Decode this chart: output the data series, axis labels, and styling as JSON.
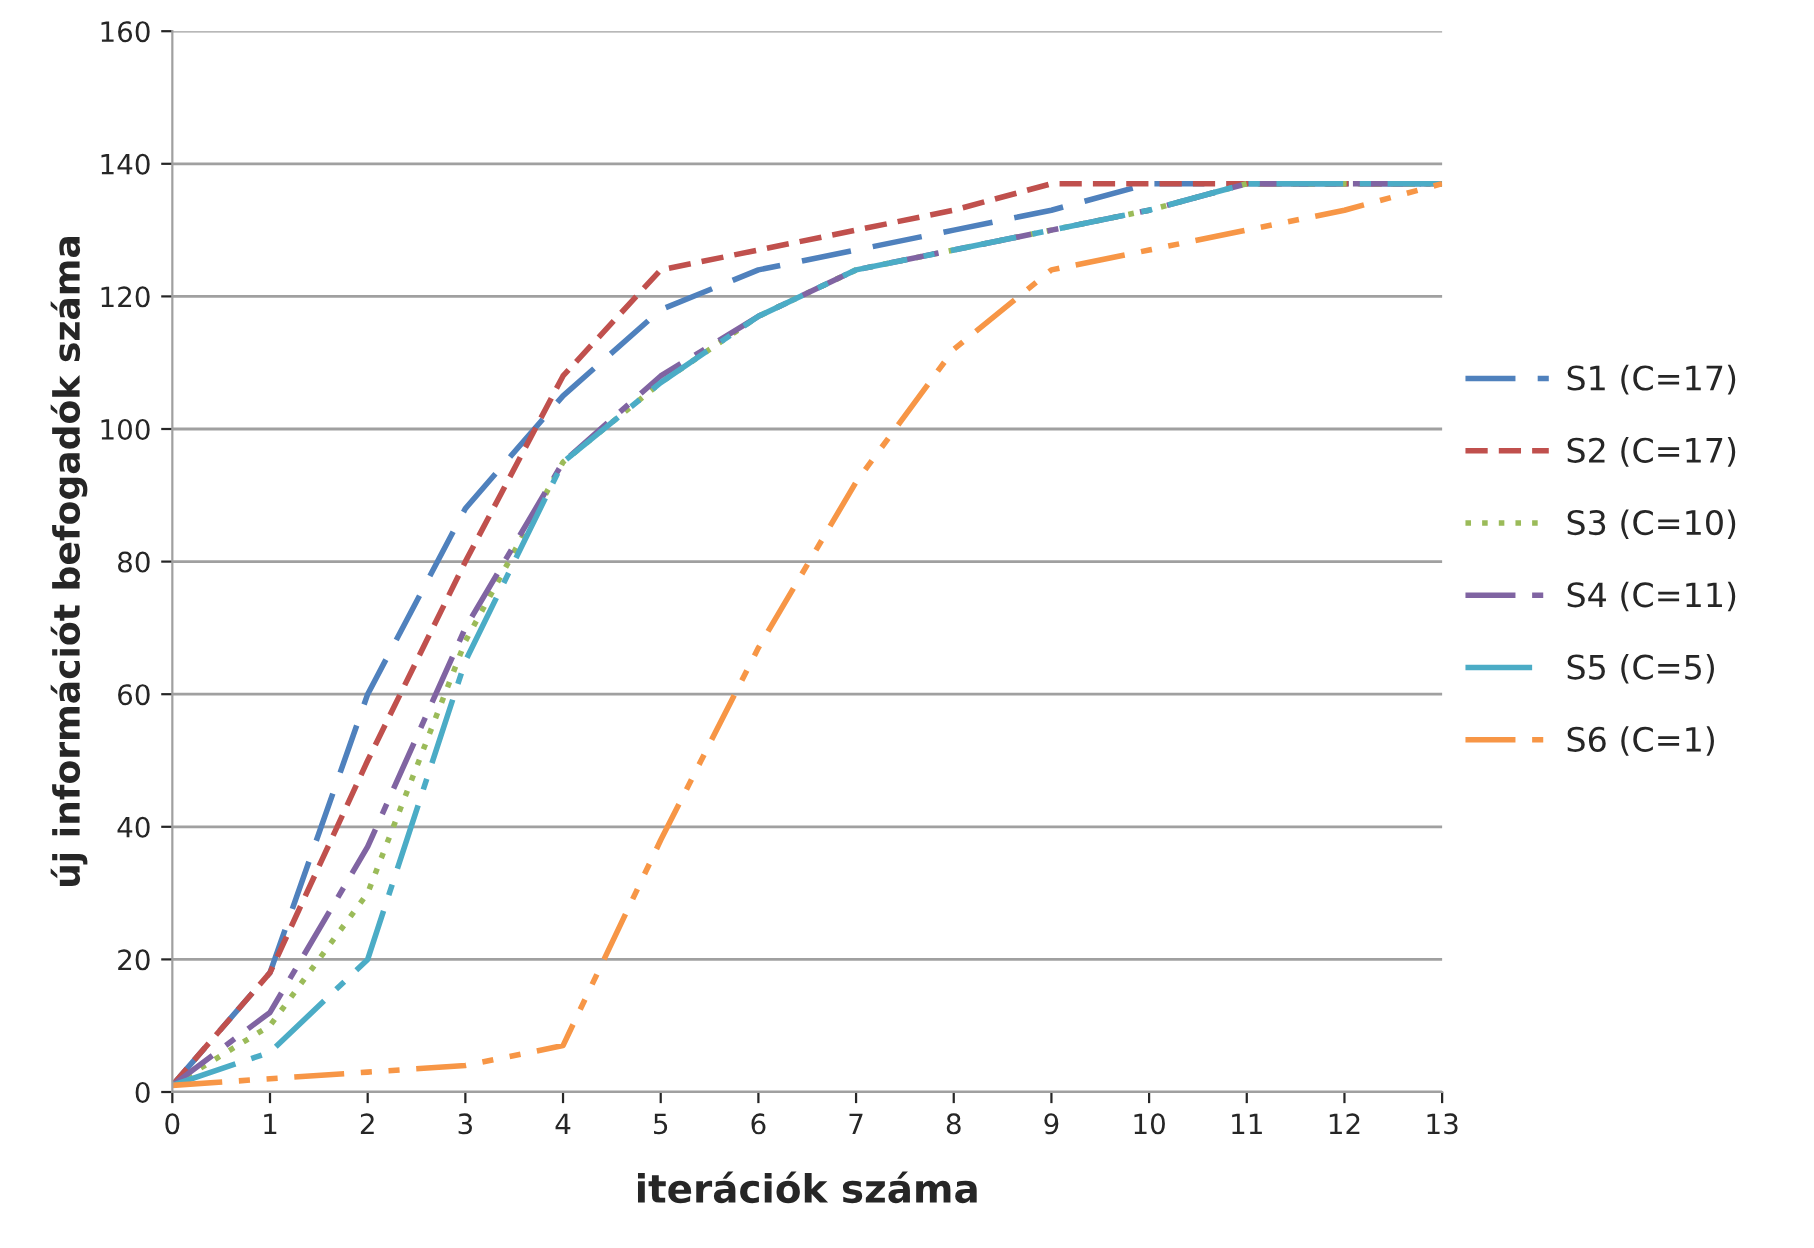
{
  "chart_data": {
    "type": "line",
    "xlabel": "iterációk száma",
    "ylabel": "új információt befogadók száma",
    "x": [
      0,
      1,
      2,
      3,
      4,
      5,
      6,
      7,
      8,
      9,
      10,
      11,
      12,
      13
    ],
    "series": [
      {
        "name": "S1 (C=17)",
        "color": "#4f81bd",
        "line_style": "dashed",
        "values": [
          1,
          18,
          60,
          88,
          105,
          118,
          124,
          127,
          130,
          133,
          137,
          137,
          137,
          137
        ]
      },
      {
        "name": "S2 (C=17)",
        "color": "#c0504d",
        "line_style": "dashed",
        "values": [
          1,
          18,
          50,
          80,
          108,
          124,
          127,
          130,
          133,
          137,
          137,
          137,
          137,
          137
        ]
      },
      {
        "name": "S3 (C=10)",
        "color": "#9bbb59",
        "line_style": "dotted",
        "values": [
          1,
          10,
          30,
          68,
          95,
          107,
          117,
          124,
          127,
          130,
          133,
          137,
          137,
          137
        ]
      },
      {
        "name": "S4 (C=11)",
        "color": "#8064a2",
        "line_style": "dashed",
        "values": [
          1,
          12,
          37,
          70,
          95,
          108,
          117,
          124,
          127,
          130,
          133,
          137,
          137,
          137
        ]
      },
      {
        "name": "S5 (C=5)",
        "color": "#4bacc6",
        "line_style": "dashed",
        "values": [
          1,
          6,
          20,
          65,
          95,
          107,
          117,
          124,
          127,
          130,
          133,
          137,
          137,
          137
        ]
      },
      {
        "name": "S6 (C=1)",
        "color": "#f79646",
        "line_style": "dashed",
        "values": [
          1,
          2,
          3,
          4,
          7,
          38,
          67,
          92,
          112,
          124,
          127,
          130,
          133,
          137
        ]
      }
    ],
    "xlim": [
      0,
      13
    ],
    "ylim": [
      0,
      160
    ],
    "xticks": [
      0,
      1,
      2,
      3,
      4,
      5,
      6,
      7,
      8,
      9,
      10,
      11,
      12,
      13
    ],
    "yticks": [
      0,
      20,
      40,
      60,
      80,
      100,
      120,
      140,
      160
    ],
    "grid": "y",
    "legend": "right",
    "marker": "none"
  }
}
